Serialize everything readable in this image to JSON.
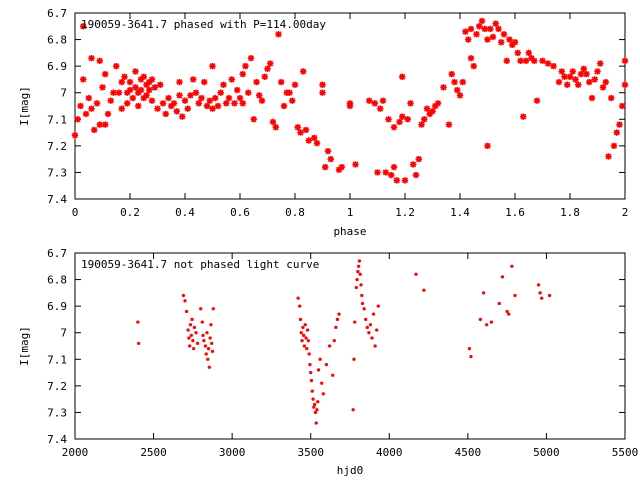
{
  "chart_data": [
    {
      "type": "scatter",
      "title": "190059-3641.7 phased with P=114.00day",
      "xlabel": "phase",
      "ylabel": "I[mag]",
      "xlim": [
        0,
        2
      ],
      "ylim": [
        6.7,
        7.4
      ],
      "y_inverted": true,
      "grid": false,
      "marker_color": "#ff0000",
      "x_ticks": [
        "0",
        "0.2",
        "0.4",
        "0.6",
        "0.8",
        "1",
        "1.2",
        "1.4",
        "1.6",
        "1.8",
        "2"
      ],
      "x_tick_values": [
        0,
        0.2,
        0.4,
        0.6,
        0.8,
        1,
        1.2,
        1.4,
        1.6,
        1.8,
        2
      ],
      "y_ticks": [
        "6.7",
        "6.8",
        "6.9",
        "7",
        "7.1",
        "7.2",
        "7.3",
        "7.4"
      ],
      "y_tick_values": [
        6.7,
        6.8,
        6.9,
        7,
        7.1,
        7.2,
        7.3,
        7.4
      ],
      "points": [
        [
          0.0,
          7.16
        ],
        [
          0.01,
          7.1
        ],
        [
          0.02,
          7.05
        ],
        [
          0.03,
          6.95
        ],
        [
          0.03,
          6.75
        ],
        [
          0.04,
          7.08
        ],
        [
          0.05,
          7.02
        ],
        [
          0.06,
          6.87
        ],
        [
          0.06,
          7.06
        ],
        [
          0.07,
          7.14
        ],
        [
          0.08,
          7.04
        ],
        [
          0.09,
          6.88
        ],
        [
          0.09,
          7.12
        ],
        [
          0.1,
          6.98
        ],
        [
          0.11,
          7.12
        ],
        [
          0.11,
          6.93
        ],
        [
          0.12,
          7.08
        ],
        [
          0.13,
          7.03
        ],
        [
          0.14,
          7.0
        ],
        [
          0.15,
          6.9
        ],
        [
          0.16,
          7.0
        ],
        [
          0.17,
          6.96
        ],
        [
          0.17,
          7.06
        ],
        [
          0.18,
          6.94
        ],
        [
          0.19,
          7.0
        ],
        [
          0.19,
          7.04
        ],
        [
          0.2,
          6.99
        ],
        [
          0.2,
          6.96
        ],
        [
          0.21,
          7.02
        ],
        [
          0.22,
          6.92
        ],
        [
          0.22,
          6.98
        ],
        [
          0.23,
          7.0
        ],
        [
          0.23,
          7.05
        ],
        [
          0.24,
          6.95
        ],
        [
          0.24,
          6.99
        ],
        [
          0.25,
          6.94
        ],
        [
          0.25,
          7.02
        ],
        [
          0.26,
          6.97
        ],
        [
          0.26,
          7.01
        ],
        [
          0.27,
          6.96
        ],
        [
          0.27,
          6.99
        ],
        [
          0.28,
          6.95
        ],
        [
          0.28,
          7.03
        ],
        [
          0.29,
          6.98
        ],
        [
          0.3,
          7.06
        ],
        [
          0.31,
          6.97
        ],
        [
          0.32,
          7.04
        ],
        [
          0.33,
          7.08
        ],
        [
          0.34,
          7.02
        ],
        [
          0.35,
          7.05
        ],
        [
          0.36,
          7.04
        ],
        [
          0.37,
          7.07
        ],
        [
          0.38,
          7.01
        ],
        [
          0.38,
          6.96
        ],
        [
          0.39,
          7.09
        ],
        [
          0.4,
          7.03
        ],
        [
          0.41,
          7.06
        ],
        [
          0.42,
          7.01
        ],
        [
          0.43,
          6.95
        ],
        [
          0.44,
          7.0
        ],
        [
          0.45,
          7.04
        ],
        [
          0.46,
          7.02
        ],
        [
          0.47,
          6.96
        ],
        [
          0.48,
          7.05
        ],
        [
          0.49,
          7.03
        ],
        [
          0.5,
          6.9
        ],
        [
          0.5,
          7.06
        ],
        [
          0.51,
          7.02
        ],
        [
          0.52,
          7.05
        ],
        [
          0.53,
          7.0
        ],
        [
          0.54,
          6.97
        ],
        [
          0.55,
          7.04
        ],
        [
          0.56,
          7.02
        ],
        [
          0.57,
          6.95
        ],
        [
          0.58,
          7.04
        ],
        [
          0.59,
          6.99
        ],
        [
          0.6,
          7.02
        ],
        [
          0.61,
          6.93
        ],
        [
          0.61,
          7.04
        ],
        [
          0.62,
          6.9
        ],
        [
          0.63,
          7.0
        ],
        [
          0.64,
          6.87
        ],
        [
          0.65,
          7.1
        ],
        [
          0.66,
          6.96
        ],
        [
          0.67,
          7.01
        ],
        [
          0.68,
          7.03
        ],
        [
          0.69,
          6.94
        ],
        [
          0.7,
          6.91
        ],
        [
          0.71,
          6.89
        ],
        [
          0.72,
          7.11
        ],
        [
          0.73,
          7.13
        ],
        [
          0.74,
          6.78
        ],
        [
          0.75,
          6.96
        ],
        [
          0.76,
          7.05
        ],
        [
          0.77,
          7.0
        ],
        [
          0.78,
          7.0
        ],
        [
          0.79,
          7.03
        ],
        [
          0.8,
          6.97
        ],
        [
          0.81,
          7.13
        ],
        [
          0.82,
          7.15
        ],
        [
          0.83,
          6.92
        ],
        [
          0.84,
          7.14
        ],
        [
          0.85,
          7.18
        ],
        [
          0.87,
          7.17
        ],
        [
          0.88,
          7.19
        ],
        [
          0.9,
          6.97
        ],
        [
          0.9,
          7.0
        ],
        [
          0.91,
          7.28
        ],
        [
          0.92,
          7.22
        ],
        [
          0.93,
          7.25
        ],
        [
          0.96,
          7.29
        ],
        [
          0.97,
          7.28
        ],
        [
          1.0,
          7.04
        ],
        [
          1.0,
          7.05
        ],
        [
          1.02,
          7.27
        ],
        [
          1.07,
          7.03
        ],
        [
          1.09,
          7.04
        ],
        [
          1.1,
          7.3
        ],
        [
          1.11,
          7.06
        ],
        [
          1.12,
          7.03
        ],
        [
          1.13,
          7.3
        ],
        [
          1.14,
          7.1
        ],
        [
          1.15,
          7.31
        ],
        [
          1.16,
          7.13
        ],
        [
          1.16,
          7.28
        ],
        [
          1.17,
          7.33
        ],
        [
          1.18,
          7.11
        ],
        [
          1.19,
          7.09
        ],
        [
          1.19,
          6.94
        ],
        [
          1.2,
          7.33
        ],
        [
          1.21,
          7.1
        ],
        [
          1.22,
          7.04
        ],
        [
          1.23,
          7.27
        ],
        [
          1.24,
          7.31
        ],
        [
          1.25,
          7.25
        ],
        [
          1.26,
          7.12
        ],
        [
          1.27,
          7.1
        ],
        [
          1.28,
          7.06
        ],
        [
          1.29,
          7.08
        ],
        [
          1.3,
          7.07
        ],
        [
          1.31,
          7.05
        ],
        [
          1.32,
          7.04
        ],
        [
          1.34,
          6.98
        ],
        [
          1.36,
          7.12
        ],
        [
          1.37,
          6.93
        ],
        [
          1.38,
          6.96
        ],
        [
          1.39,
          6.99
        ],
        [
          1.4,
          7.01
        ],
        [
          1.41,
          6.96
        ],
        [
          1.42,
          6.77
        ],
        [
          1.43,
          6.8
        ],
        [
          1.44,
          6.76
        ],
        [
          1.44,
          6.87
        ],
        [
          1.45,
          6.9
        ],
        [
          1.46,
          6.78
        ],
        [
          1.47,
          6.75
        ],
        [
          1.48,
          6.73
        ],
        [
          1.49,
          6.76
        ],
        [
          1.5,
          6.8
        ],
        [
          1.5,
          7.2
        ],
        [
          1.51,
          6.76
        ],
        [
          1.52,
          6.79
        ],
        [
          1.53,
          6.74
        ],
        [
          1.54,
          6.76
        ],
        [
          1.55,
          6.81
        ],
        [
          1.56,
          6.78
        ],
        [
          1.57,
          6.88
        ],
        [
          1.58,
          6.8
        ],
        [
          1.59,
          6.82
        ],
        [
          1.6,
          6.81
        ],
        [
          1.61,
          6.85
        ],
        [
          1.62,
          6.88
        ],
        [
          1.63,
          7.09
        ],
        [
          1.64,
          6.88
        ],
        [
          1.65,
          6.85
        ],
        [
          1.66,
          6.87
        ],
        [
          1.67,
          6.88
        ],
        [
          1.68,
          7.03
        ],
        [
          1.7,
          6.88
        ],
        [
          1.72,
          6.89
        ],
        [
          1.74,
          6.9
        ],
        [
          1.76,
          6.96
        ],
        [
          1.77,
          6.92
        ],
        [
          1.78,
          6.94
        ],
        [
          1.79,
          6.97
        ],
        [
          1.8,
          6.94
        ],
        [
          1.81,
          6.92
        ],
        [
          1.82,
          6.95
        ],
        [
          1.83,
          6.97
        ],
        [
          1.84,
          6.93
        ],
        [
          1.85,
          6.91
        ],
        [
          1.86,
          6.93
        ],
        [
          1.87,
          6.96
        ],
        [
          1.88,
          7.02
        ],
        [
          1.89,
          6.95
        ],
        [
          1.9,
          6.92
        ],
        [
          1.91,
          6.89
        ],
        [
          1.92,
          6.98
        ],
        [
          1.93,
          6.96
        ],
        [
          1.94,
          7.24
        ],
        [
          1.95,
          7.02
        ],
        [
          1.96,
          7.2
        ],
        [
          1.97,
          7.15
        ],
        [
          1.98,
          7.12
        ],
        [
          1.99,
          7.05
        ],
        [
          2.0,
          6.88
        ],
        [
          2.0,
          6.97
        ]
      ]
    },
    {
      "type": "scatter",
      "title": "190059-3641.7 not phased light curve",
      "xlabel": "hjd0",
      "ylabel": "I[mag]",
      "xlim": [
        2000,
        5500
      ],
      "ylim": [
        6.7,
        7.4
      ],
      "y_inverted": true,
      "grid": false,
      "marker_color": "#ff0000",
      "x_ticks": [
        "2000",
        "2500",
        "3000",
        "3500",
        "4000",
        "4500",
        "5000",
        "5500"
      ],
      "x_tick_values": [
        2000,
        2500,
        3000,
        3500,
        4000,
        4500,
        5000,
        5500
      ],
      "y_ticks": [
        "6.7",
        "6.8",
        "6.9",
        "7",
        "7.1",
        "7.2",
        "7.3",
        "7.4"
      ],
      "y_tick_values": [
        6.7,
        6.8,
        6.9,
        7,
        7.1,
        7.2,
        7.3,
        7.4
      ],
      "points": [
        [
          2400,
          6.96
        ],
        [
          2405,
          7.04
        ],
        [
          2690,
          6.86
        ],
        [
          2700,
          6.88
        ],
        [
          2710,
          6.92
        ],
        [
          2720,
          6.99
        ],
        [
          2725,
          7.02
        ],
        [
          2730,
          7.05
        ],
        [
          2735,
          6.97
        ],
        [
          2740,
          7.01
        ],
        [
          2745,
          6.95
        ],
        [
          2750,
          7.03
        ],
        [
          2755,
          7.06
        ],
        [
          2760,
          6.98
        ],
        [
          2770,
          7.0
        ],
        [
          2780,
          7.04
        ],
        [
          2800,
          6.91
        ],
        [
          2810,
          6.96
        ],
        [
          2815,
          7.01
        ],
        [
          2820,
          7.03
        ],
        [
          2830,
          7.05
        ],
        [
          2835,
          7.08
        ],
        [
          2840,
          7.0
        ],
        [
          2845,
          7.1
        ],
        [
          2850,
          7.06
        ],
        [
          2855,
          7.13
        ],
        [
          2860,
          7.02
        ],
        [
          2865,
          6.97
        ],
        [
          2870,
          7.04
        ],
        [
          2875,
          7.07
        ],
        [
          2880,
          6.91
        ],
        [
          3420,
          6.87
        ],
        [
          3430,
          6.9
        ],
        [
          3435,
          6.95
        ],
        [
          3440,
          7.0
        ],
        [
          3445,
          7.03
        ],
        [
          3450,
          6.98
        ],
        [
          3455,
          7.01
        ],
        [
          3460,
          7.05
        ],
        [
          3465,
          6.97
        ],
        [
          3470,
          7.02
        ],
        [
          3475,
          7.06
        ],
        [
          3480,
          6.99
        ],
        [
          3485,
          7.03
        ],
        [
          3490,
          7.08
        ],
        [
          3495,
          7.12
        ],
        [
          3500,
          7.15
        ],
        [
          3505,
          7.18
        ],
        [
          3510,
          7.22
        ],
        [
          3515,
          7.25
        ],
        [
          3520,
          7.28
        ],
        [
          3525,
          7.27
        ],
        [
          3530,
          7.3
        ],
        [
          3535,
          7.34
        ],
        [
          3540,
          7.29
        ],
        [
          3545,
          7.26
        ],
        [
          3550,
          7.14
        ],
        [
          3560,
          7.1
        ],
        [
          3570,
          7.19
        ],
        [
          3580,
          7.23
        ],
        [
          3600,
          7.12
        ],
        [
          3620,
          7.05
        ],
        [
          3640,
          7.16
        ],
        [
          3650,
          7.03
        ],
        [
          3660,
          6.98
        ],
        [
          3670,
          6.95
        ],
        [
          3680,
          6.93
        ],
        [
          3770,
          7.29
        ],
        [
          3775,
          7.1
        ],
        [
          3780,
          6.96
        ],
        [
          3790,
          6.83
        ],
        [
          3795,
          6.8
        ],
        [
          3800,
          6.77
        ],
        [
          3805,
          6.75
        ],
        [
          3810,
          6.73
        ],
        [
          3815,
          6.78
        ],
        [
          3820,
          6.82
        ],
        [
          3825,
          6.86
        ],
        [
          3830,
          6.89
        ],
        [
          3840,
          6.91
        ],
        [
          3850,
          6.95
        ],
        [
          3860,
          6.98
        ],
        [
          3870,
          7.0
        ],
        [
          3880,
          6.97
        ],
        [
          3890,
          7.02
        ],
        [
          3900,
          6.93
        ],
        [
          3910,
          7.05
        ],
        [
          3920,
          6.99
        ],
        [
          3930,
          6.9
        ],
        [
          4170,
          6.78
        ],
        [
          4220,
          6.84
        ],
        [
          4510,
          7.06
        ],
        [
          4520,
          7.09
        ],
        [
          4580,
          6.95
        ],
        [
          4600,
          6.85
        ],
        [
          4620,
          6.97
        ],
        [
          4650,
          6.96
        ],
        [
          4700,
          6.89
        ],
        [
          4720,
          6.79
        ],
        [
          4750,
          6.92
        ],
        [
          4760,
          6.93
        ],
        [
          4780,
          6.75
        ],
        [
          4800,
          6.86
        ],
        [
          4950,
          6.82
        ],
        [
          4960,
          6.85
        ],
        [
          4970,
          6.87
        ],
        [
          5020,
          6.86
        ]
      ]
    }
  ]
}
